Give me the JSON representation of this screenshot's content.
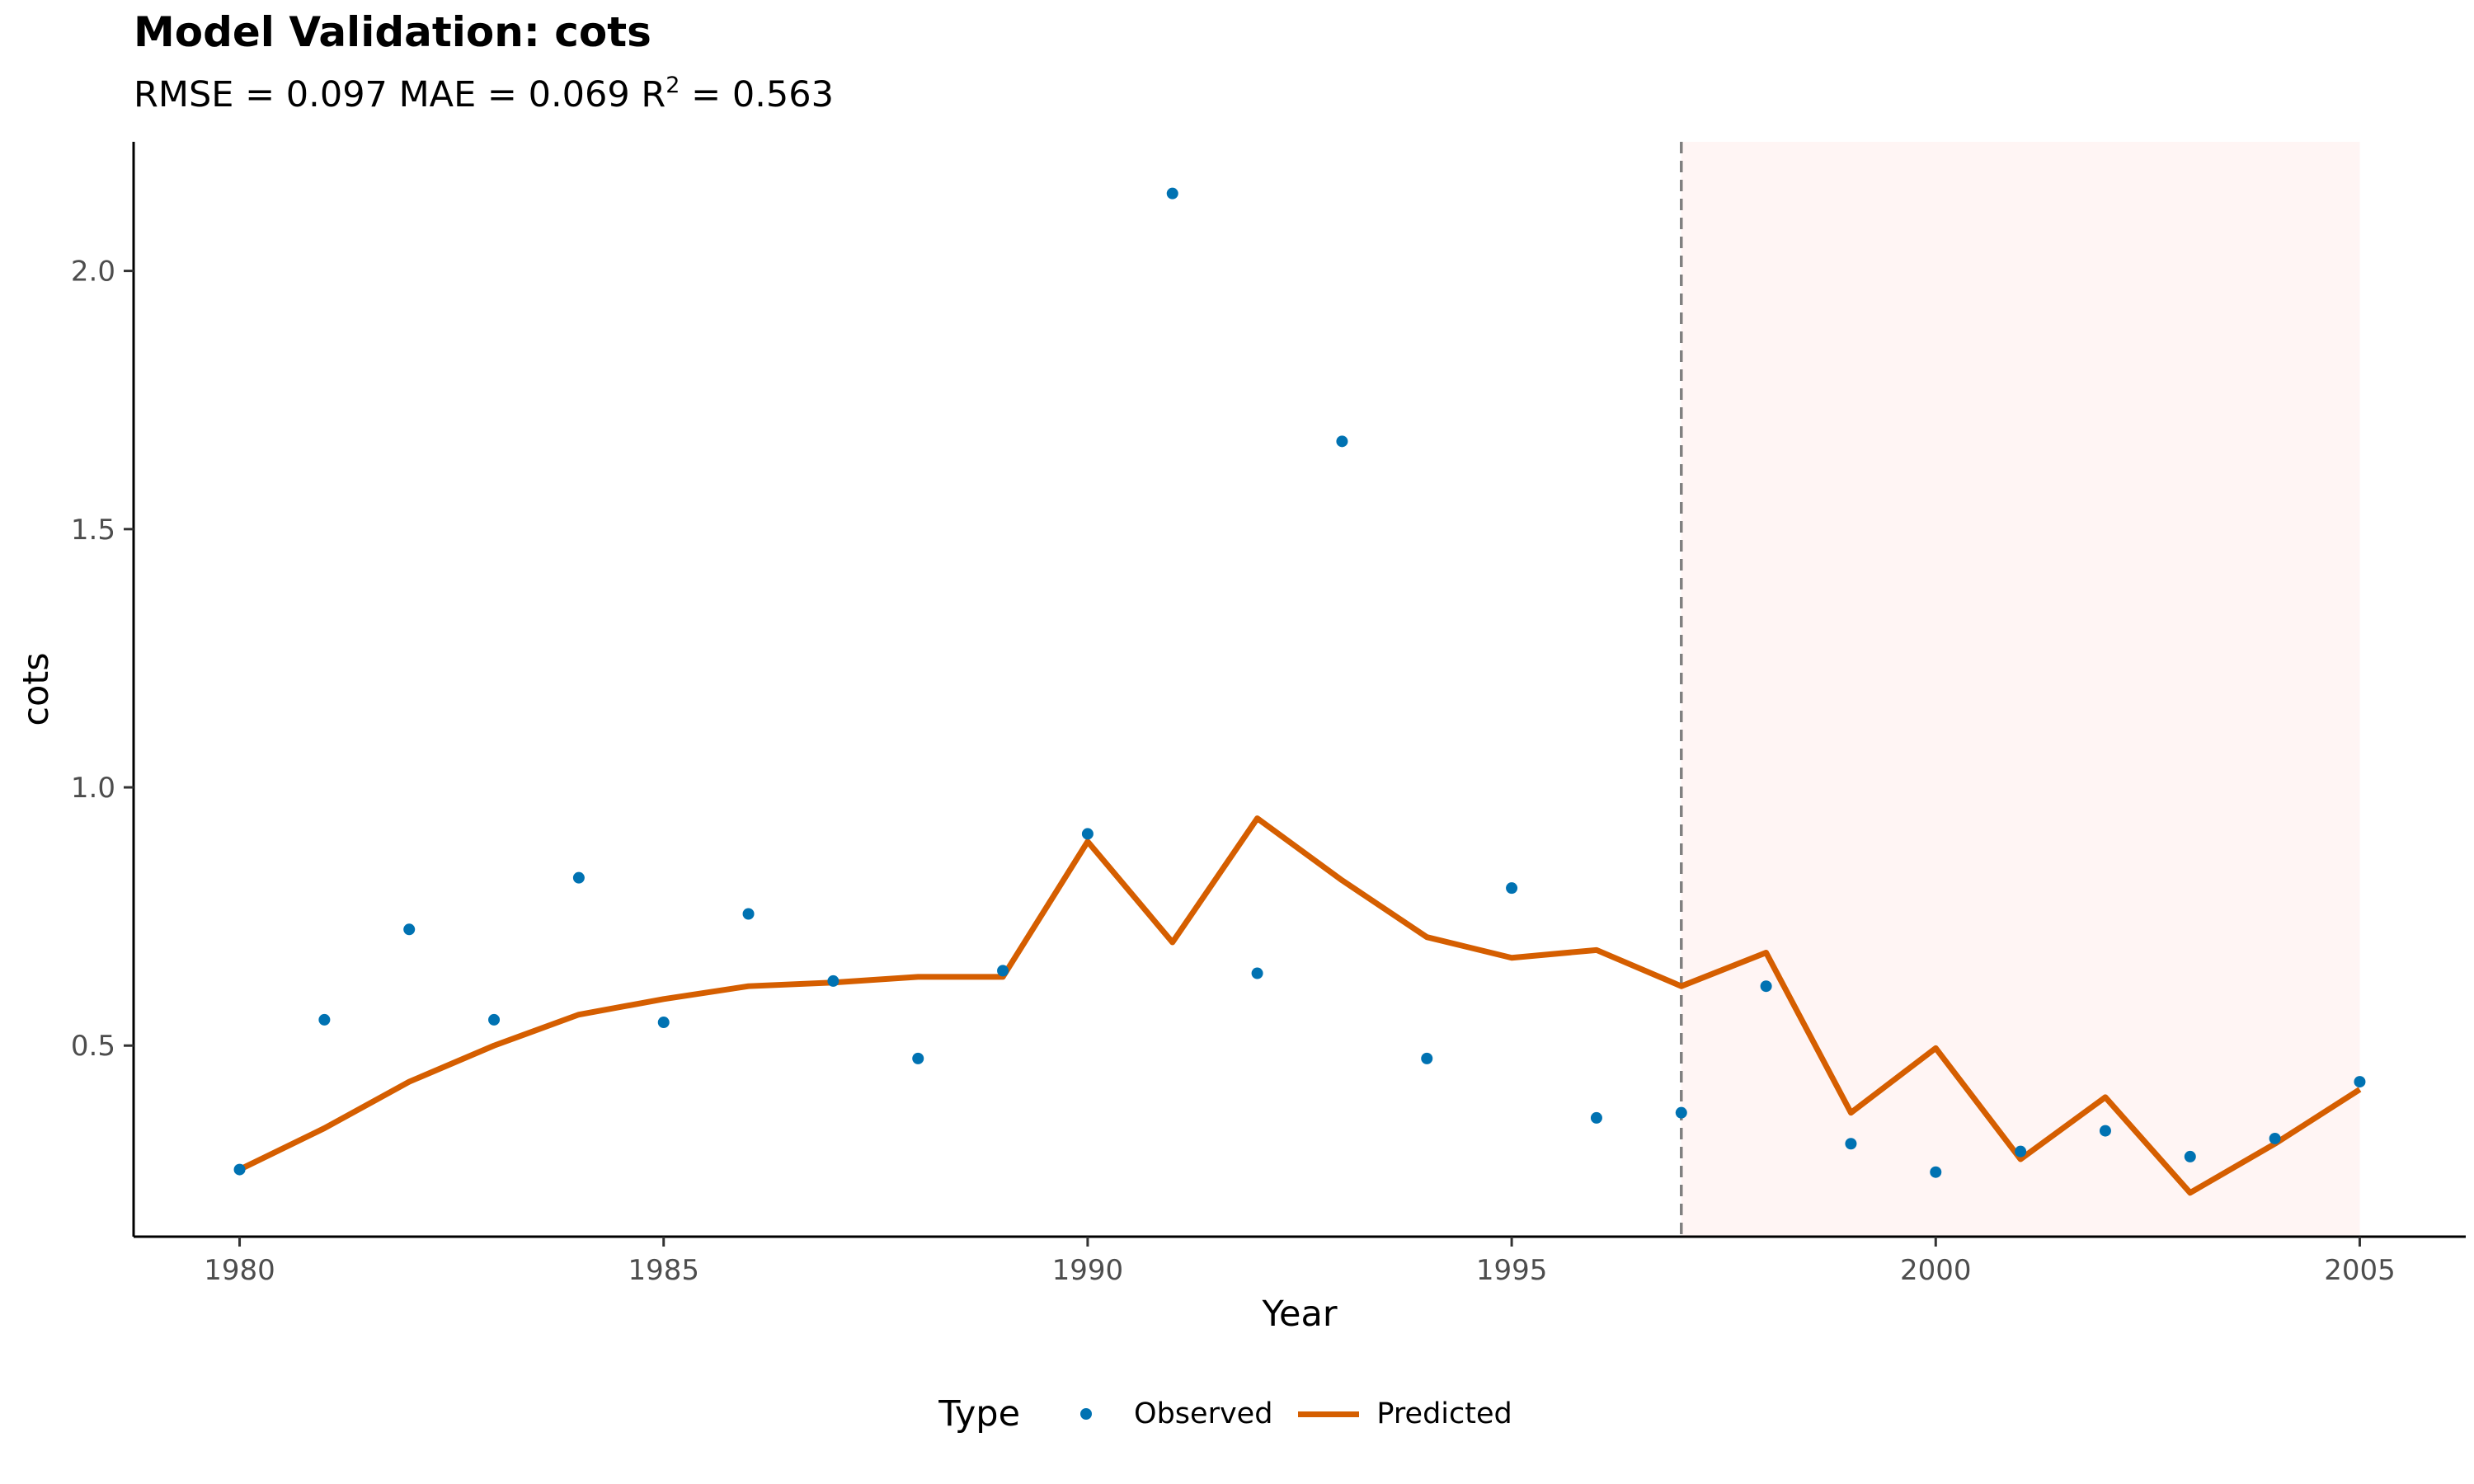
{
  "title": "Model Validation: cots",
  "subtitle": {
    "prefix": "RMSE = 0.097 MAE = 0.069 R",
    "sup": "2",
    "suffix": " = 0.563"
  },
  "legend": {
    "title": "Type",
    "observed_label": "Observed",
    "predicted_label": "Predicted"
  },
  "colors": {
    "observed": "#0072B2",
    "predicted": "#D55E00",
    "validation_fill": "#FFF5F4",
    "cutoff_line": "#808080"
  },
  "chart_data": {
    "type": "line",
    "title": "Model Validation: cots",
    "xlabel": "Year",
    "ylabel": "cots",
    "xlim": [
      1978.75,
      2006.25
    ],
    "ylim": [
      0.13,
      2.25
    ],
    "xticks": [
      1980,
      1985,
      1990,
      1995,
      2000,
      2005
    ],
    "yticks": [
      0.5,
      1.0,
      1.5,
      2.0
    ],
    "ytick_labels": [
      "0.5",
      "1.0",
      "1.5",
      "2.0"
    ],
    "grid": false,
    "legend_position": "bottom",
    "validation_start": 1997,
    "validation_end": 2005,
    "x": [
      1980,
      1981,
      1982,
      1983,
      1984,
      1985,
      1986,
      1987,
      1988,
      1989,
      1990,
      1991,
      1992,
      1993,
      1994,
      1995,
      1996,
      1997,
      1998,
      1999,
      2000,
      2001,
      2002,
      2003,
      2004,
      2005
    ],
    "series": [
      {
        "name": "Observed",
        "kind": "scatter",
        "values": [
          0.26,
          0.55,
          0.725,
          0.55,
          0.825,
          0.545,
          0.755,
          0.625,
          0.475,
          0.645,
          0.91,
          2.15,
          0.64,
          1.67,
          0.475,
          0.805,
          0.36,
          0.37,
          0.615,
          0.31,
          0.255,
          0.295,
          0.335,
          0.285,
          0.32,
          0.43
        ]
      },
      {
        "name": "Predicted",
        "kind": "line",
        "values": [
          0.26,
          0.34,
          0.43,
          0.5,
          0.56,
          0.59,
          0.615,
          0.622,
          0.633,
          0.633,
          0.895,
          0.7,
          0.94,
          0.82,
          0.71,
          0.67,
          0.685,
          0.615,
          0.68,
          0.37,
          0.495,
          0.28,
          0.4,
          0.215,
          0.31,
          0.415
        ]
      }
    ]
  }
}
